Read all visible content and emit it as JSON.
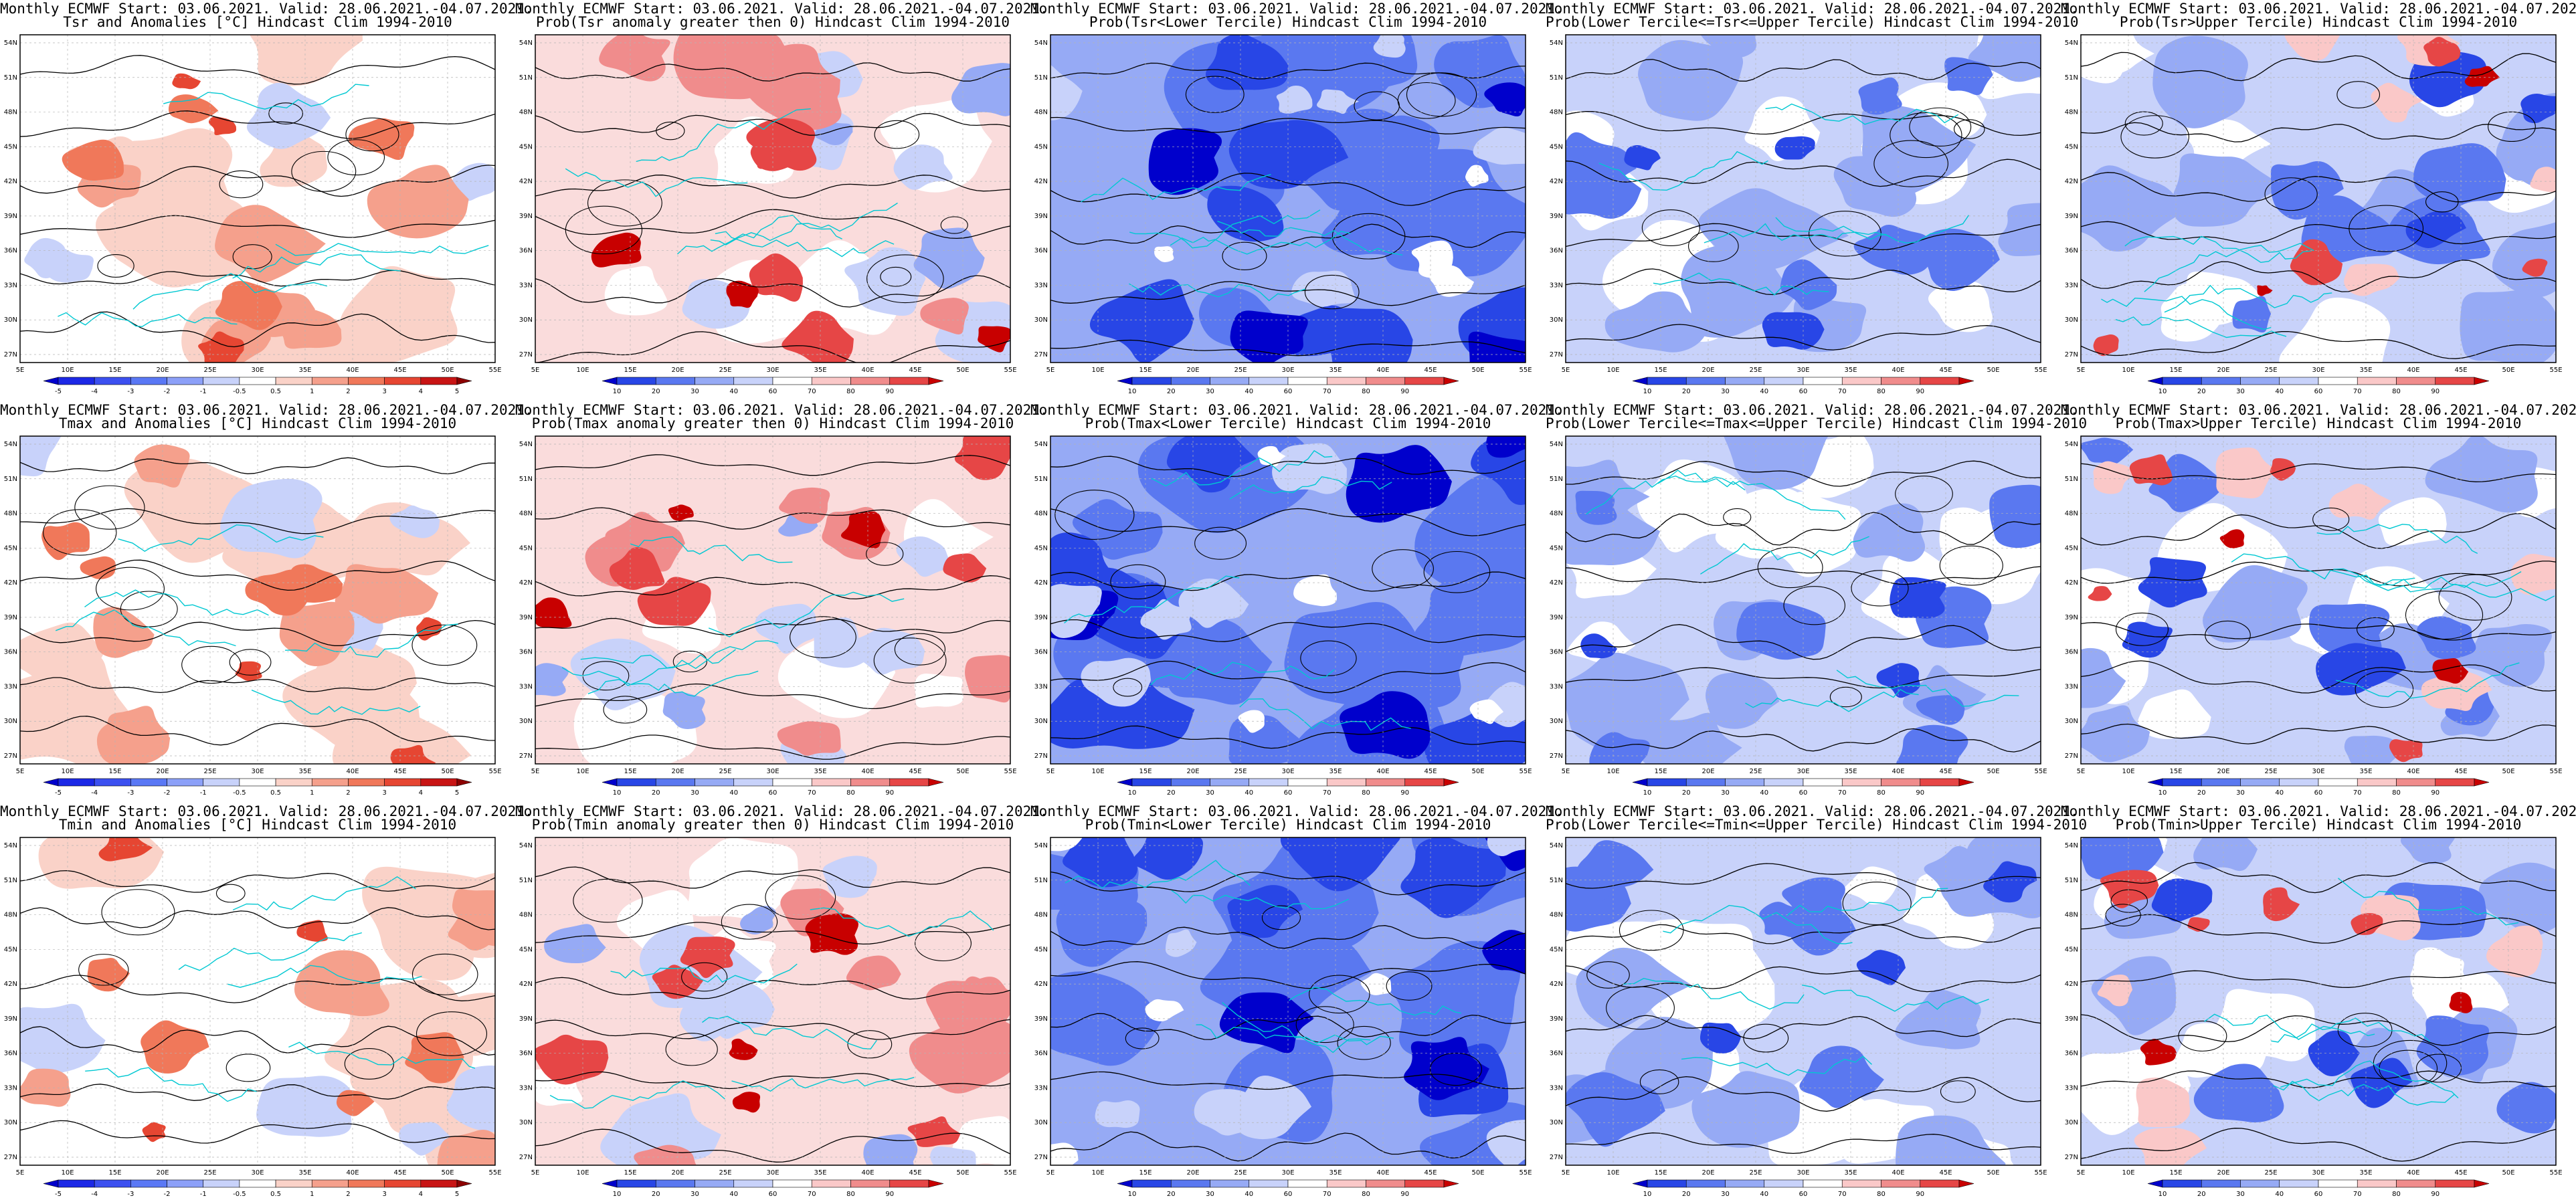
{
  "header_line": "Monthly ECMWF Start: 03.06.2021. Valid: 28.06.2021.-04.07.2021.",
  "panels": [
    {
      "title": "Tsr and Anomalies [°C] Hindcast Clim 1994-2010",
      "kind": "anomaly"
    },
    {
      "title": "Prob(Tsr anomaly greater then 0) Hindcast Clim 1994-2010",
      "kind": "prob_red"
    },
    {
      "title": "Prob(Tsr<Lower Tercile) Hindcast Clim 1994-2010",
      "kind": "prob_blue_strong"
    },
    {
      "title": "Prob(Lower Tercile<=Tsr<=Upper Tercile) Hindcast Clim 1994-2010",
      "kind": "prob_blue_mid"
    },
    {
      "title": "Prob(Tsr>Upper Tercile) Hindcast Clim 1994-2010",
      "kind": "prob_mixed"
    },
    {
      "title": "Tmax and Anomalies [°C] Hindcast Clim 1994-2010",
      "kind": "anomaly"
    },
    {
      "title": "Prob(Tmax anomaly greater then 0) Hindcast Clim 1994-2010",
      "kind": "prob_red"
    },
    {
      "title": "Prob(Tmax<Lower Tercile) Hindcast Clim 1994-2010",
      "kind": "prob_blue_strong"
    },
    {
      "title": "Prob(Lower Tercile<=Tmax<=Upper Tercile) Hindcast Clim 1994-2010",
      "kind": "prob_blue_mid"
    },
    {
      "title": "Prob(Tmax>Upper Tercile) Hindcast Clim 1994-2010",
      "kind": "prob_mixed"
    },
    {
      "title": "Tmin and Anomalies [°C] Hindcast Clim 1994-2010",
      "kind": "anomaly"
    },
    {
      "title": "Prob(Tmin anomaly greater then 0) Hindcast Clim 1994-2010",
      "kind": "prob_red"
    },
    {
      "title": "Prob(Tmin<Lower Tercile) Hindcast Clim 1994-2010",
      "kind": "prob_blue_strong"
    },
    {
      "title": "Prob(Lower Tercile<=Tmin<=Upper Tercile) Hindcast Clim 1994-2010",
      "kind": "prob_blue_mid"
    },
    {
      "title": "Prob(Tmin>Upper Tercile) Hindcast Clim 1994-2010",
      "kind": "prob_mixed"
    }
  ],
  "lon_labels": [
    "5E",
    "10E",
    "15E",
    "20E",
    "25E",
    "30E",
    "35E",
    "40E",
    "45E",
    "50E",
    "55E"
  ],
  "lat_labels": [
    "54N",
    "51N",
    "48N",
    "45N",
    "42N",
    "39N",
    "36N",
    "33N",
    "30N",
    "27N"
  ],
  "anomaly_colorbar": {
    "labels": [
      "-5",
      "-4",
      "-3",
      "-2",
      "-1",
      "-0.5",
      "0.5",
      "1",
      "2",
      "3",
      "4",
      "5"
    ],
    "colors": [
      "#0000cc",
      "#1c28e6",
      "#3c50f0",
      "#5a78f5",
      "#8ca0f8",
      "#c8d2fa",
      "#ffffff",
      "#fad2c8",
      "#f5a08c",
      "#f0785a",
      "#e64632",
      "#c81414",
      "#8c0000"
    ]
  },
  "prob_colorbar": {
    "labels": [
      "10",
      "20",
      "30",
      "40",
      "60",
      "70",
      "80",
      "90"
    ],
    "colors": [
      "#0000cc",
      "#2846e6",
      "#5a78f0",
      "#96aaf5",
      "#c8d2fa",
      "#ffffff",
      "#fac8c8",
      "#f08c8c",
      "#e64646",
      "#c80000"
    ]
  },
  "colors": {
    "contour": "#000000",
    "coastline": "#00c8d2",
    "grid": "#b4b4b4"
  }
}
